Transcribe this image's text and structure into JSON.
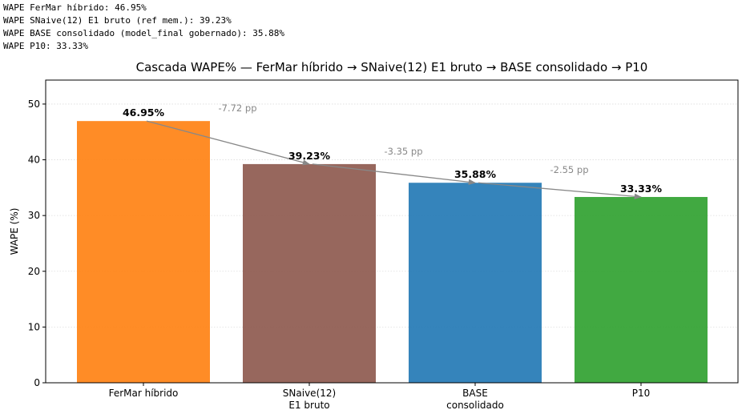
{
  "output_log": [
    "WAPE FerMar híbrido: 46.95%",
    "WAPE SNaive(12) E1 bruto (ref mem.): 39.23%",
    "WAPE BASE consolidado (model_final gobernado): 35.88%",
    "WAPE P10: 33.33%"
  ],
  "chart_data": {
    "type": "bar",
    "title": "Cascada WAPE% — FerMar híbrido → SNaive(12) E1 bruto → BASE consolidado → P10",
    "xlabel": "",
    "ylabel": "WAPE (%)",
    "ylim": [
      0,
      54.3
    ],
    "yticks": [
      0,
      10,
      20,
      30,
      40,
      50
    ],
    "grid": "y, dotted",
    "categories": [
      [
        "FerMar híbrido"
      ],
      [
        "SNaive(12)",
        "E1 bruto"
      ],
      [
        "BASE",
        "consolidado"
      ],
      [
        "P10"
      ]
    ],
    "values": [
      46.95,
      39.23,
      35.88,
      33.33
    ],
    "value_labels": [
      "46.95%",
      "39.23%",
      "35.88%",
      "33.33%"
    ],
    "colors": [
      "#ff7f0e",
      "#8c564b",
      "#1f77b4",
      "#2ca02c"
    ],
    "step_arrows": [
      {
        "from": 0,
        "to": 1,
        "label": "-7.72 pp"
      },
      {
        "from": 1,
        "to": 2,
        "label": "-3.35 pp"
      },
      {
        "from": 2,
        "to": 3,
        "label": "-2.55 pp"
      }
    ]
  }
}
